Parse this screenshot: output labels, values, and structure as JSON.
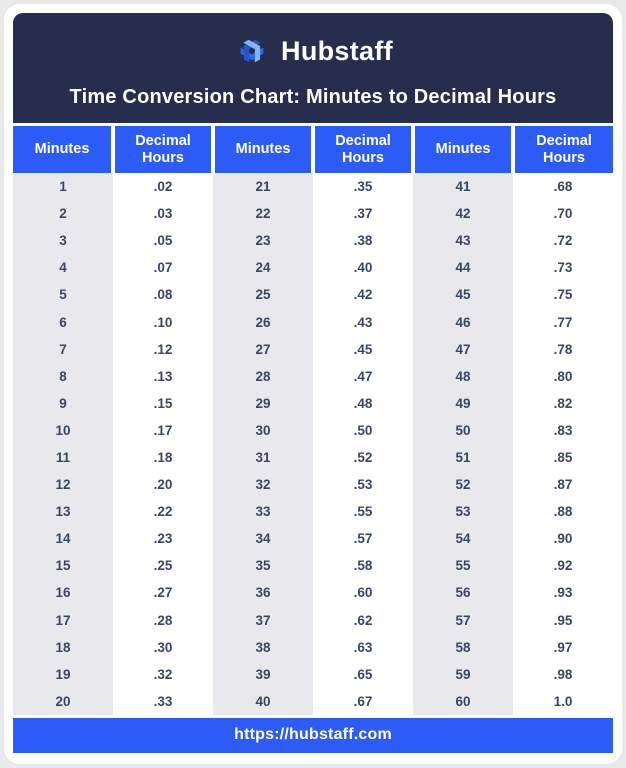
{
  "brand": {
    "name": "Hubstaff",
    "logo_icon": "hubstaff-hex-logo"
  },
  "chart_data": {
    "type": "table",
    "title": "Time Conversion Chart: Minutes to Decimal Hours",
    "columns": [
      "Minutes",
      "Decimal Hours",
      "Minutes",
      "Decimal Hours",
      "Minutes",
      "Decimal Hours"
    ],
    "groups": [
      {
        "minutes": [
          1,
          2,
          3,
          4,
          5,
          6,
          7,
          8,
          9,
          10,
          11,
          12,
          13,
          14,
          15,
          16,
          17,
          18,
          19,
          20
        ],
        "decimal_hours": [
          ".02",
          ".03",
          ".05",
          ".07",
          ".08",
          ".10",
          ".12",
          ".13",
          ".15",
          ".17",
          ".18",
          ".20",
          ".22",
          ".23",
          ".25",
          ".27",
          ".28",
          ".30",
          ".32",
          ".33"
        ]
      },
      {
        "minutes": [
          21,
          22,
          23,
          24,
          25,
          26,
          27,
          28,
          29,
          30,
          31,
          32,
          33,
          34,
          35,
          36,
          37,
          38,
          39,
          40
        ],
        "decimal_hours": [
          ".35",
          ".37",
          ".38",
          ".40",
          ".42",
          ".43",
          ".45",
          ".47",
          ".48",
          ".50",
          ".52",
          ".53",
          ".55",
          ".57",
          ".58",
          ".60",
          ".62",
          ".63",
          ".65",
          ".67"
        ]
      },
      {
        "minutes": [
          41,
          42,
          43,
          44,
          45,
          46,
          47,
          48,
          49,
          50,
          51,
          52,
          53,
          54,
          55,
          56,
          57,
          58,
          59,
          60
        ],
        "decimal_hours": [
          ".68",
          ".70",
          ".72",
          ".73",
          ".75",
          ".77",
          ".78",
          ".80",
          ".82",
          ".83",
          ".85",
          ".87",
          ".88",
          ".90",
          ".92",
          ".93",
          ".95",
          ".97",
          ".98",
          "1.0"
        ]
      }
    ]
  },
  "footer": {
    "url": "https://hubstaff.com"
  },
  "colors": {
    "header_navy": "#262d4d",
    "accent_blue": "#2d5bf6",
    "logo_dark_blue": "#2a52c9",
    "logo_light_blue": "#7fb5f0",
    "logo_bright_blue": "#2e63f7",
    "minutes_column_gray": "#e8e8ed",
    "body_text": "#3a4764",
    "page_background": "#e9e9ea"
  }
}
